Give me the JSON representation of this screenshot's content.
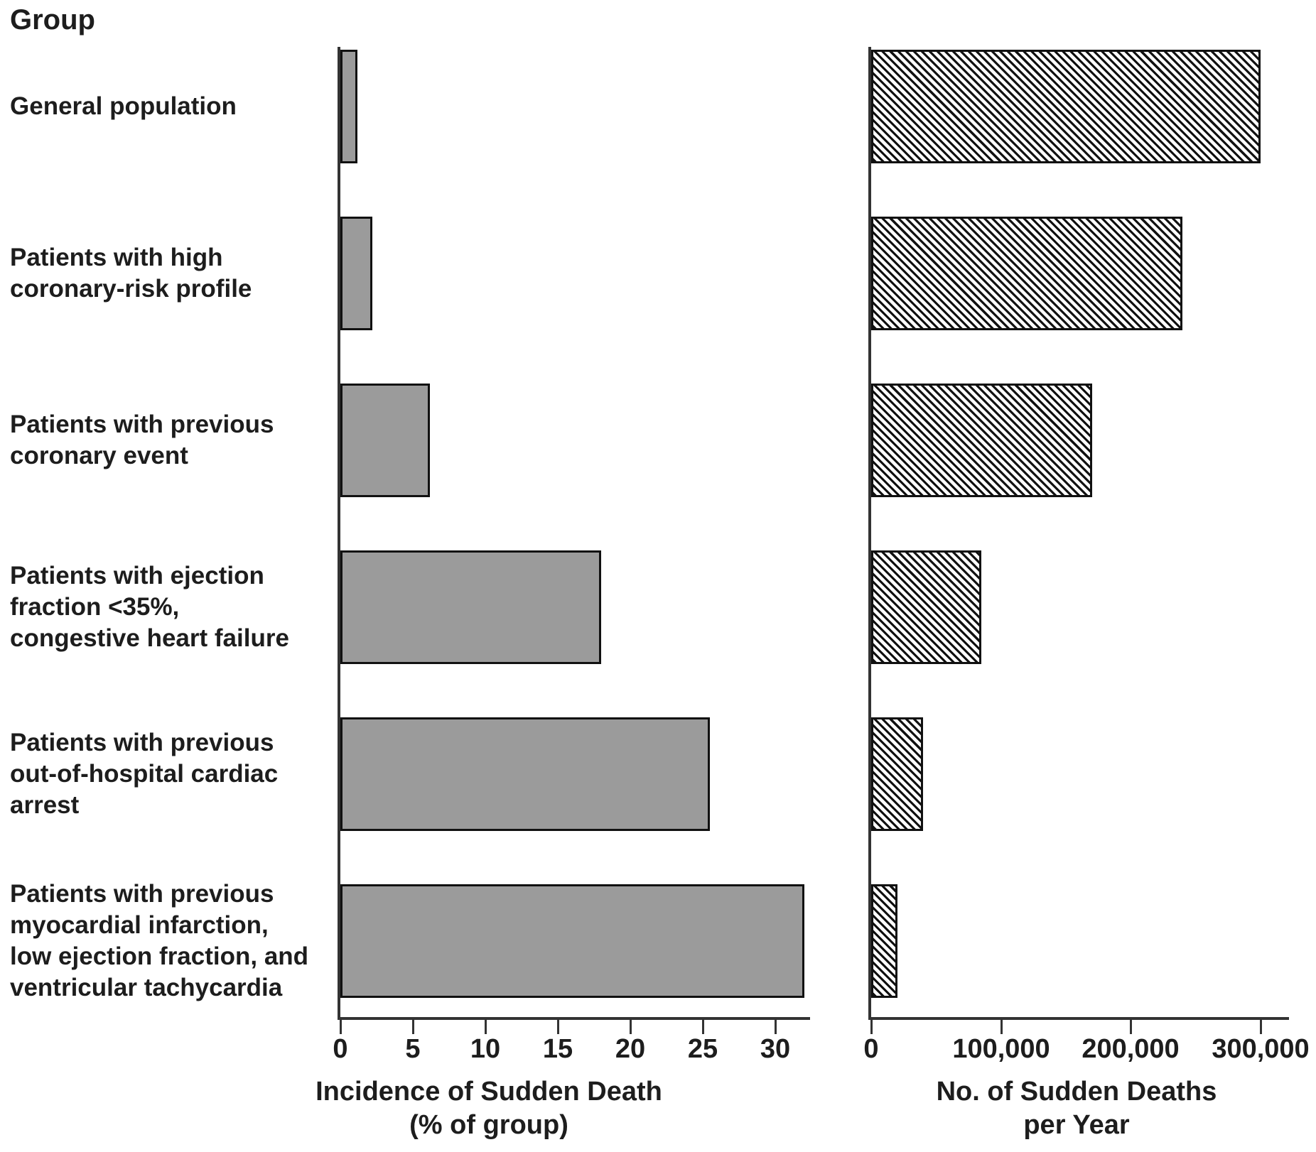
{
  "group_header": "Group",
  "rows": [
    {
      "label_lines": [
        "General population"
      ]
    },
    {
      "label_lines": [
        "Patients with high",
        "coronary-risk profile"
      ]
    },
    {
      "label_lines": [
        "Patients with previous",
        "coronary event"
      ]
    },
    {
      "label_lines": [
        "Patients with ejection",
        "fraction <35%,",
        "congestive heart failure"
      ]
    },
    {
      "label_lines": [
        "Patients with previous",
        "out-of-hospital cardiac",
        "arrest"
      ]
    },
    {
      "label_lines": [
        "Patients with previous",
        "myocardial infarction,",
        "low ejection fraction, and",
        "ventricular tachycardia"
      ]
    }
  ],
  "colors": {
    "solid_bar_fill": "#9b9b9b",
    "bar_border": "#111111",
    "axis_line": "#333333",
    "text": "#1d1d1d",
    "hatch_line": "#111111",
    "hatch_background": "#ffffff"
  },
  "chart_data": [
    {
      "type": "bar",
      "orientation": "horizontal",
      "panel": "left",
      "bar_style": "solid-gray",
      "title": "",
      "xlabel_lines": [
        "Incidence of Sudden Death",
        "(% of group)"
      ],
      "categories": [
        "General population",
        "Patients with high coronary-risk profile",
        "Patients with previous coronary event",
        "Patients with ejection fraction <35%, congestive heart failure",
        "Patients with previous out-of-hospital cardiac arrest",
        "Patients with previous myocardial infarction, low ejection fraction, and ventricular tachycardia"
      ],
      "values": [
        1.2,
        2.2,
        6.2,
        18,
        25.5,
        32
      ],
      "xlim": [
        0,
        32.3
      ],
      "grid": false,
      "xticks": [
        {
          "value": 0,
          "label": "0"
        },
        {
          "value": 5,
          "label": "5"
        },
        {
          "value": 10,
          "label": "10"
        },
        {
          "value": 15,
          "label": "15"
        },
        {
          "value": 20,
          "label": "20"
        },
        {
          "value": 25,
          "label": "25"
        },
        {
          "value": 30,
          "label": "30"
        }
      ]
    },
    {
      "type": "bar",
      "orientation": "horizontal",
      "panel": "right",
      "bar_style": "hatched",
      "title": "",
      "xlabel_lines": [
        "No. of Sudden Deaths",
        "per Year"
      ],
      "categories": [
        "General population",
        "Patients with high coronary-risk profile",
        "Patients with previous coronary event",
        "Patients with ejection fraction <35%, congestive heart failure",
        "Patients with previous out-of-hospital cardiac arrest",
        "Patients with previous myocardial infarction, low ejection fraction, and ventricular tachycardia"
      ],
      "values": [
        300000,
        240000,
        170000,
        85000,
        40000,
        20000
      ],
      "xlim": [
        0,
        323000
      ],
      "grid": false,
      "xticks": [
        {
          "value": 0,
          "label": "0"
        },
        {
          "value": 100000,
          "label": "100,000"
        },
        {
          "value": 200000,
          "label": "200,000"
        },
        {
          "value": 300000,
          "label": "300,000"
        }
      ]
    }
  ]
}
